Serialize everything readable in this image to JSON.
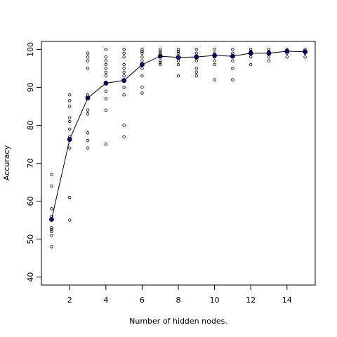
{
  "chart_data": {
    "type": "scatter",
    "title": "",
    "xlabel": "Number of hidden nodes.",
    "ylabel": "Accuracy",
    "xlim": [
      0.44,
      15.56
    ],
    "ylim": [
      37.9,
      102.1
    ],
    "xticks": [
      2,
      4,
      6,
      8,
      10,
      12,
      14
    ],
    "yticks": [
      40,
      50,
      60,
      70,
      80,
      90,
      100
    ],
    "grid": false,
    "colors": {
      "trial_points": "#000000",
      "mean_points": "#00008b",
      "mean_line": "#000000"
    },
    "series": [
      {
        "kind": "trial-points",
        "points": [
          [
            1,
            48
          ],
          [
            1,
            51
          ],
          [
            1,
            52
          ],
          [
            1,
            52.5
          ],
          [
            1,
            53
          ],
          [
            1,
            55
          ],
          [
            1,
            56
          ],
          [
            1,
            58
          ],
          [
            1,
            64
          ],
          [
            1,
            67
          ],
          [
            2,
            55
          ],
          [
            2,
            61
          ],
          [
            2,
            74
          ],
          [
            2,
            76
          ],
          [
            2,
            77
          ],
          [
            2,
            79
          ],
          [
            2,
            81
          ],
          [
            2,
            82
          ],
          [
            2,
            85
          ],
          [
            2,
            86.5
          ],
          [
            2,
            88
          ],
          [
            3,
            74
          ],
          [
            3,
            76
          ],
          [
            3,
            78
          ],
          [
            3,
            83
          ],
          [
            3,
            84
          ],
          [
            3,
            87
          ],
          [
            3,
            88
          ],
          [
            3,
            95
          ],
          [
            3,
            97
          ],
          [
            3,
            98
          ],
          [
            3,
            99
          ],
          [
            4,
            75
          ],
          [
            4,
            84
          ],
          [
            4,
            87
          ],
          [
            4,
            89
          ],
          [
            4,
            91
          ],
          [
            4,
            93
          ],
          [
            4,
            94
          ],
          [
            4,
            95
          ],
          [
            4,
            96
          ],
          [
            4,
            97
          ],
          [
            4,
            98
          ],
          [
            4,
            100
          ],
          [
            5,
            77
          ],
          [
            5,
            80
          ],
          [
            5,
            88
          ],
          [
            5,
            90
          ],
          [
            5,
            92
          ],
          [
            5,
            93
          ],
          [
            5,
            94
          ],
          [
            5,
            95
          ],
          [
            5,
            96
          ],
          [
            5,
            98
          ],
          [
            5,
            99
          ],
          [
            5,
            100
          ],
          [
            6,
            88.5
          ],
          [
            6,
            90
          ],
          [
            6,
            93
          ],
          [
            6,
            95
          ],
          [
            6,
            96
          ],
          [
            6,
            97
          ],
          [
            6,
            98
          ],
          [
            6,
            99
          ],
          [
            6,
            99.5
          ],
          [
            6,
            100
          ],
          [
            7,
            96
          ],
          [
            7,
            96.5
          ],
          [
            7,
            97
          ],
          [
            7,
            98
          ],
          [
            7,
            98.5
          ],
          [
            7,
            99
          ],
          [
            7,
            99.5
          ],
          [
            7,
            100
          ],
          [
            8,
            93
          ],
          [
            8,
            96
          ],
          [
            8,
            97
          ],
          [
            8,
            98
          ],
          [
            8,
            99
          ],
          [
            8,
            99.5
          ],
          [
            8,
            100
          ],
          [
            9,
            93
          ],
          [
            9,
            94
          ],
          [
            9,
            95
          ],
          [
            9,
            97
          ],
          [
            9,
            98
          ],
          [
            9,
            99
          ],
          [
            9,
            100
          ],
          [
            10,
            92
          ],
          [
            10,
            96
          ],
          [
            10,
            97
          ],
          [
            10,
            98
          ],
          [
            10,
            99
          ],
          [
            10,
            100
          ],
          [
            11,
            92
          ],
          [
            11,
            95
          ],
          [
            11,
            97
          ],
          [
            11,
            98
          ],
          [
            11,
            99
          ],
          [
            11,
            100
          ],
          [
            12,
            96
          ],
          [
            12,
            98
          ],
          [
            12,
            99
          ],
          [
            12,
            99.5
          ],
          [
            12,
            100
          ],
          [
            13,
            97
          ],
          [
            13,
            98
          ],
          [
            13,
            99
          ],
          [
            13,
            99.5
          ],
          [
            13,
            100
          ],
          [
            14,
            98
          ],
          [
            14,
            99
          ],
          [
            14,
            99.5
          ],
          [
            14,
            100
          ],
          [
            15,
            98
          ],
          [
            15,
            99
          ],
          [
            15,
            99.5
          ],
          [
            15,
            100
          ]
        ]
      },
      {
        "kind": "mean-line",
        "x": [
          1,
          2,
          3,
          4,
          5,
          6,
          7,
          8,
          9,
          10,
          11,
          12,
          13,
          14,
          15
        ],
        "values": [
          55.2,
          76.3,
          87.2,
          91.1,
          91.8,
          96.0,
          98.2,
          97.9,
          98.0,
          98.4,
          98.2,
          99.0,
          99.0,
          99.5,
          99.4
        ]
      }
    ]
  }
}
